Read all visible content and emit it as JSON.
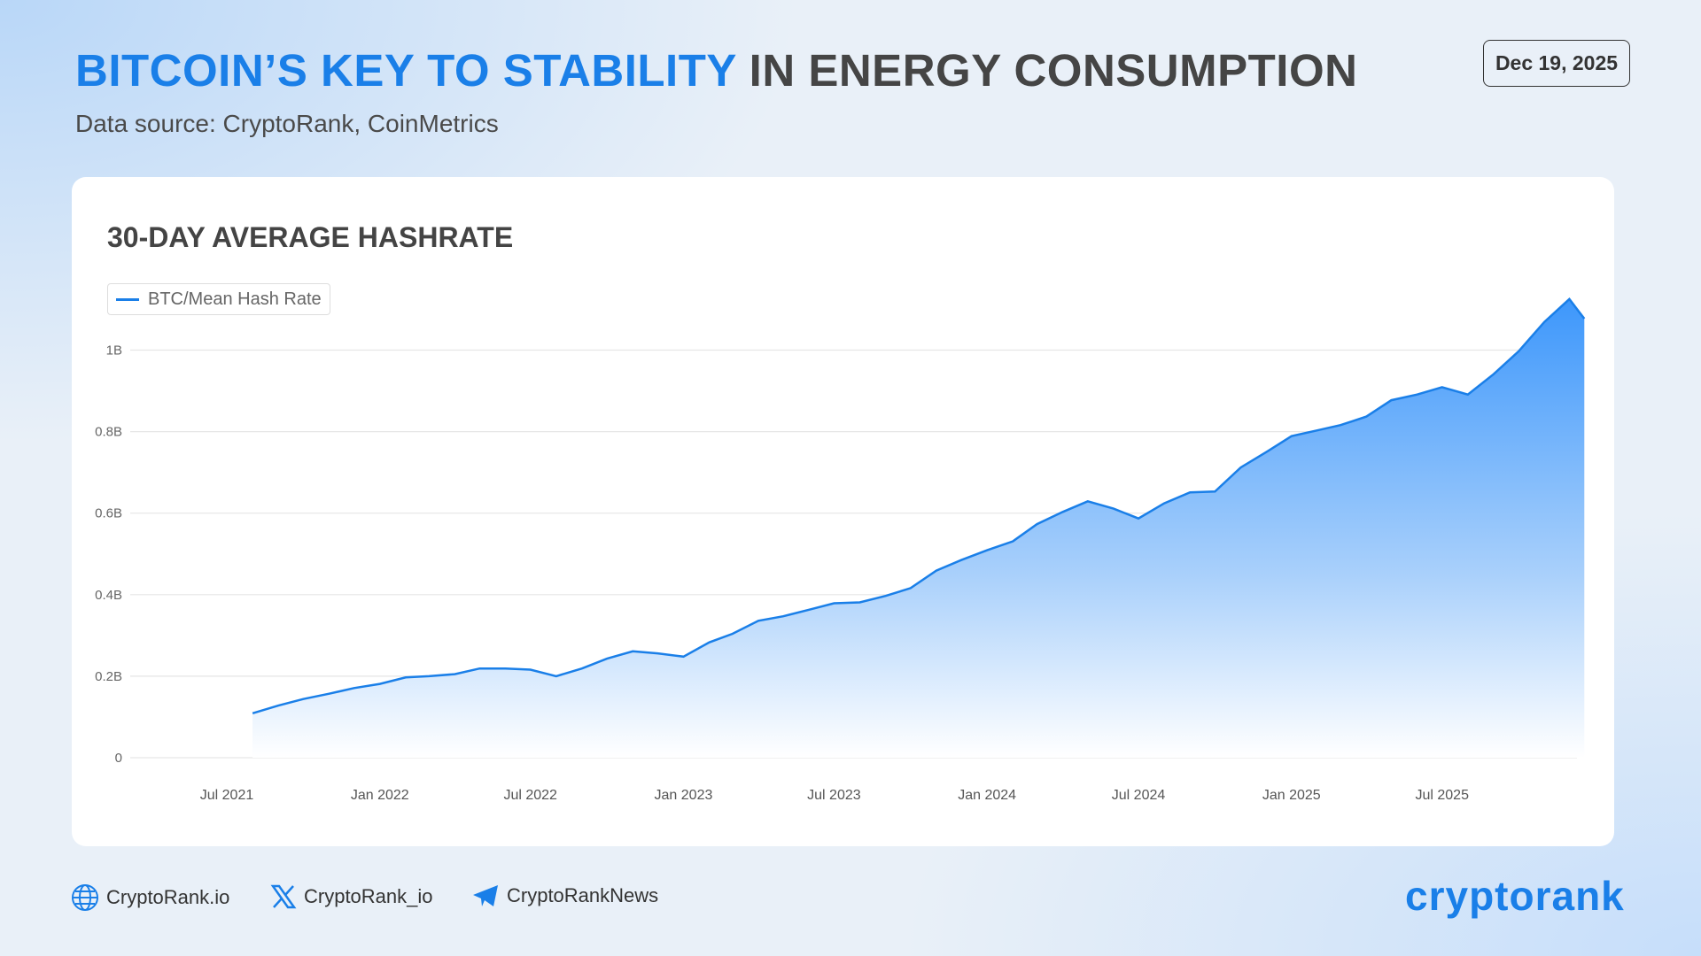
{
  "header": {
    "title_highlight": "BITCOIN’S KEY TO STABILITY",
    "title_rest": "IN ENERGY CONSUMPTION",
    "subtitle": "Data source: CryptoRank, CoinMetrics",
    "date": "Dec 19, 2025"
  },
  "footer": {
    "website": "CryptoRank.io",
    "x_handle": "CryptoRank_io",
    "telegram": "CryptoRankNews",
    "logo": "cryptorank"
  },
  "colors": {
    "accent": "#1a7fe8",
    "text": "#454545"
  },
  "chart_data": {
    "type": "area",
    "title": "30-DAY AVERAGE HASHRATE",
    "legend": "top-left",
    "grid": true,
    "series": [
      {
        "name": "BTC/Mean Hash Rate",
        "color": "#1a7fe8",
        "x": [
          "2021-08-01",
          "2021-09-01",
          "2021-10-01",
          "2021-11-01",
          "2021-12-01",
          "2022-01-01",
          "2022-02-01",
          "2022-03-01",
          "2022-04-01",
          "2022-05-01",
          "2022-06-01",
          "2022-07-01",
          "2022-08-01",
          "2022-09-01",
          "2022-10-01",
          "2022-11-01",
          "2022-12-01",
          "2023-01-01",
          "2023-02-01",
          "2023-03-01",
          "2023-04-01",
          "2023-05-01",
          "2023-06-01",
          "2023-07-01",
          "2023-08-01",
          "2023-09-01",
          "2023-10-01",
          "2023-11-01",
          "2023-12-01",
          "2024-01-01",
          "2024-02-01",
          "2024-03-01",
          "2024-04-01",
          "2024-05-01",
          "2024-06-01",
          "2024-07-01",
          "2024-08-01",
          "2024-09-01",
          "2024-10-01",
          "2024-11-01",
          "2024-12-01",
          "2025-01-01",
          "2025-02-01",
          "2025-03-01",
          "2025-04-01",
          "2025-05-01",
          "2025-06-01",
          "2025-07-01",
          "2025-08-01",
          "2025-09-01",
          "2025-10-01",
          "2025-11-01",
          "2025-12-01",
          "2025-12-19"
        ],
        "y": [
          0.109,
          0.128,
          0.144,
          0.157,
          0.171,
          0.181,
          0.197,
          0.2,
          0.205,
          0.219,
          0.219,
          0.216,
          0.2,
          0.219,
          0.243,
          0.261,
          0.256,
          0.248,
          0.283,
          0.304,
          0.336,
          0.347,
          0.363,
          0.379,
          0.381,
          0.397,
          0.416,
          0.459,
          0.485,
          0.509,
          0.531,
          0.573,
          0.603,
          0.629,
          0.611,
          0.587,
          0.624,
          0.651,
          0.653,
          0.712,
          0.749,
          0.789,
          0.803,
          0.816,
          0.837,
          0.877,
          0.891,
          0.909,
          0.891,
          0.941,
          0.997,
          1.069,
          1.125,
          1.077
        ]
      }
    ],
    "y_ticks": [
      {
        "v": 0,
        "label": "0"
      },
      {
        "v": 0.2,
        "label": "0.2B"
      },
      {
        "v": 0.4,
        "label": "0.4B"
      },
      {
        "v": 0.6,
        "label": "0.6B"
      },
      {
        "v": 0.8,
        "label": "0.8B"
      },
      {
        "v": 1.0,
        "label": "1B"
      }
    ],
    "x_ticks": [
      {
        "d": "2021-07-01",
        "label": "Jul  2021"
      },
      {
        "d": "2022-01-01",
        "label": "Jan  2022"
      },
      {
        "d": "2022-07-01",
        "label": "Jul 2022"
      },
      {
        "d": "2023-01-01",
        "label": "Jan  2023"
      },
      {
        "d": "2023-07-01",
        "label": "Jul 2023"
      },
      {
        "d": "2024-01-01",
        "label": "Jan  2024"
      },
      {
        "d": "2024-07-01",
        "label": "Jul 2024"
      },
      {
        "d": "2025-01-01",
        "label": "Jan  2025"
      },
      {
        "d": "2025-07-01",
        "label": "Jul 2025"
      }
    ],
    "ylim": [
      0,
      1.2
    ]
  }
}
